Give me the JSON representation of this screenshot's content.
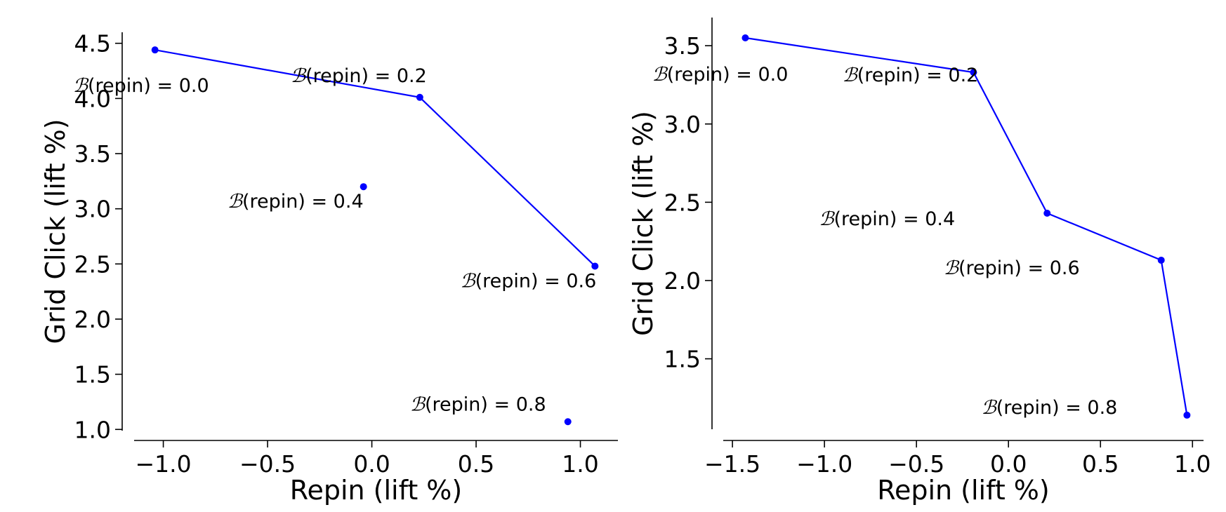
{
  "colors": {
    "series": "#0000ff",
    "axes": "#000000"
  },
  "chart_data": [
    {
      "type": "scatter",
      "title": "",
      "xlabel": "Repin (lift %)",
      "ylabel": "Grid Click (lift %)",
      "xlim": [
        -1.14,
        1.18
      ],
      "ylim": [
        0.9,
        4.6
      ],
      "x_ticks": [
        -1.0,
        -0.5,
        0.0,
        0.5,
        1.0
      ],
      "x_tick_labels": [
        "−1.0",
        "−0.5",
        "0.0",
        "0.5",
        "1.0"
      ],
      "y_ticks": [
        1.0,
        1.5,
        2.0,
        2.5,
        3.0,
        3.5,
        4.0,
        4.5
      ],
      "y_tick_labels": [
        "1.0",
        "1.5",
        "2.0",
        "2.5",
        "3.0",
        "3.5",
        "4.0",
        "4.5"
      ],
      "grid": false,
      "points": [
        {
          "x": -1.04,
          "y": 4.44,
          "label_prefix": "ℬ",
          "label_text": "(repin) = 0.0"
        },
        {
          "x": 0.23,
          "y": 4.01,
          "label_prefix": "ℬ",
          "label_text": "(repin) = 0.2"
        },
        {
          "x": -0.04,
          "y": 3.2,
          "label_prefix": "ℬ",
          "label_text": "(repin) = 0.4"
        },
        {
          "x": 1.07,
          "y": 2.48,
          "label_prefix": "ℬ",
          "label_text": "(repin) = 0.6"
        },
        {
          "x": 0.94,
          "y": 1.07,
          "label_prefix": "ℬ",
          "label_text": "(repin) = 0.8"
        }
      ],
      "frontier_line": [
        {
          "x": -1.04,
          "y": 4.44
        },
        {
          "x": 0.23,
          "y": 4.01
        },
        {
          "x": 1.07,
          "y": 2.48
        }
      ]
    },
    {
      "type": "line",
      "title": "",
      "xlabel": "Repin (lift %)",
      "ylabel": "Grid Click (lift %)",
      "xlim": [
        -1.55,
        1.06
      ],
      "ylim": [
        1.05,
        3.68
      ],
      "x_ticks": [
        -1.5,
        -1.0,
        -0.5,
        0.0,
        0.5,
        1.0
      ],
      "x_tick_labels": [
        "−1.5",
        "−1.0",
        "−0.5",
        "0.0",
        "0.5",
        "1.0"
      ],
      "y_ticks": [
        1.5,
        2.0,
        2.5,
        3.0,
        3.5
      ],
      "y_tick_labels": [
        "1.5",
        "2.0",
        "2.5",
        "3.0",
        "3.5"
      ],
      "grid": false,
      "points": [
        {
          "x": -1.43,
          "y": 3.55,
          "label_prefix": "ℬ",
          "label_text": "(repin) = 0.0"
        },
        {
          "x": -0.19,
          "y": 3.33,
          "label_prefix": "ℬ",
          "label_text": "(repin) = 0.2"
        },
        {
          "x": 0.21,
          "y": 2.43,
          "label_prefix": "ℬ",
          "label_text": "(repin) = 0.4"
        },
        {
          "x": 0.83,
          "y": 2.13,
          "label_prefix": "ℬ",
          "label_text": "(repin) = 0.6"
        },
        {
          "x": 0.97,
          "y": 1.14,
          "label_prefix": "ℬ",
          "label_text": "(repin) = 0.8"
        }
      ],
      "frontier_line": [
        {
          "x": -1.43,
          "y": 3.55
        },
        {
          "x": -0.19,
          "y": 3.33
        },
        {
          "x": 0.21,
          "y": 2.43
        },
        {
          "x": 0.83,
          "y": 2.13
        },
        {
          "x": 0.97,
          "y": 1.14
        }
      ]
    }
  ]
}
